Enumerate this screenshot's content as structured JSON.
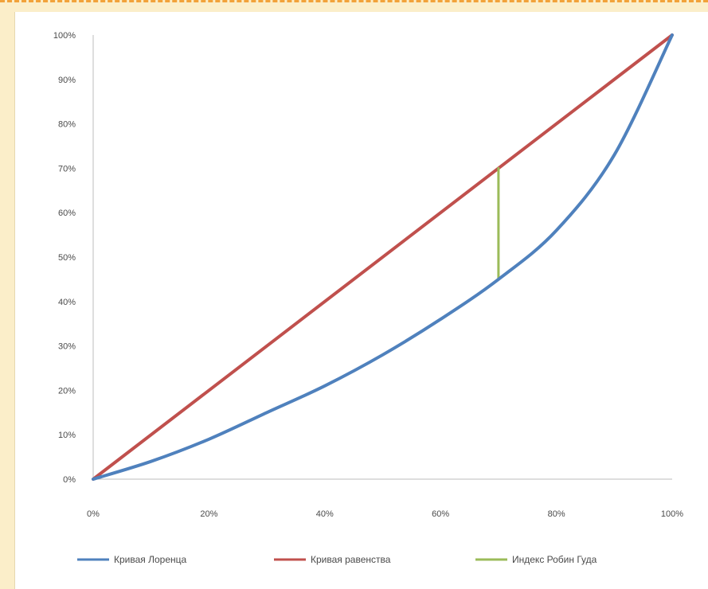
{
  "chart_data": {
    "type": "line",
    "title": "",
    "xlabel": "",
    "ylabel": "",
    "xlim": [
      0,
      100
    ],
    "ylim": [
      0,
      100
    ],
    "x_tick_labels": [
      "0%",
      "20%",
      "40%",
      "60%",
      "80%",
      "100%"
    ],
    "y_tick_labels": [
      "0%",
      "10%",
      "20%",
      "30%",
      "40%",
      "50%",
      "60%",
      "70%",
      "80%",
      "90%",
      "100%"
    ],
    "grid": false,
    "legend_position": "bottom",
    "series": [
      {
        "name": "Кривая Лоренца",
        "color": "#4f81bd",
        "x": [
          0,
          10,
          20,
          30,
          40,
          50,
          60,
          70,
          80,
          90,
          100
        ],
        "y": [
          0,
          4,
          9,
          15,
          21,
          28,
          36,
          45,
          56,
          73,
          100
        ]
      },
      {
        "name": "Кривая равенства",
        "color": "#c0504d",
        "x": [
          0,
          100
        ],
        "y": [
          0,
          100
        ]
      },
      {
        "name": "Индекс Робин Гуда",
        "color": "#9bbb59",
        "x": [
          70,
          70
        ],
        "y": [
          45,
          70
        ]
      }
    ]
  }
}
